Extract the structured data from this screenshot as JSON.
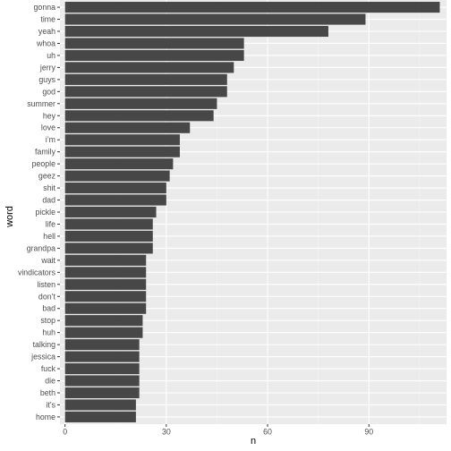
{
  "chart_data": {
    "type": "bar",
    "orientation": "horizontal",
    "xlabel": "n",
    "ylabel": "word",
    "xlim": [
      -1.5,
      113
    ],
    "x_ticks": [
      0,
      30,
      60,
      90
    ],
    "grid": true,
    "categories": [
      "gonna",
      "time",
      "yeah",
      "whoa",
      "uh",
      "jerry",
      "guys",
      "god",
      "summer",
      "hey",
      "love",
      "i’m",
      "family",
      "people",
      "geez",
      "shit",
      "dad",
      "pickle",
      "life",
      "hell",
      "grandpa",
      "wait",
      "vindicators",
      "listen",
      "don’t",
      "bad",
      "stop",
      "huh",
      "talking",
      "jessica",
      "fuck",
      "die",
      "beth",
      "it’s",
      "home"
    ],
    "values": [
      111,
      89,
      78,
      53,
      53,
      50,
      48,
      48,
      45,
      44,
      37,
      34,
      34,
      32,
      31,
      30,
      30,
      27,
      26,
      26,
      26,
      24,
      24,
      24,
      24,
      24,
      23,
      23,
      22,
      22,
      22,
      22,
      22,
      21,
      21
    ],
    "colors": {
      "bar": "#474747",
      "panel": "#ebebeb",
      "grid_major": "#ffffff",
      "grid_minor": "#f5f5f5"
    }
  }
}
